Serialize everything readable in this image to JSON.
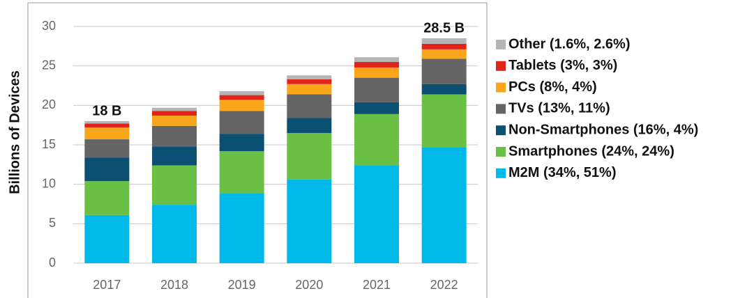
{
  "chart_data": {
    "type": "stacked_bar",
    "y_label": "Billions of Devices",
    "categories": [
      "2017",
      "2018",
      "2019",
      "2020",
      "2021",
      "2022"
    ],
    "series": [
      {
        "name": "M2M (34%,  51%)",
        "color": "#00b9e8",
        "values": [
          6.1,
          7.4,
          8.9,
          10.6,
          12.4,
          14.7
        ]
      },
      {
        "name": "Smartphones (24%,  24%)",
        "color": "#6abf45",
        "values": [
          4.3,
          5.0,
          5.3,
          5.9,
          6.5,
          6.7
        ]
      },
      {
        "name": "Non-Smartphones (16%,  4%)",
        "color": "#0b4f72",
        "values": [
          3.0,
          2.4,
          2.2,
          1.9,
          1.5,
          1.3
        ]
      },
      {
        "name": "TVs (13%,  11%)",
        "color": "#656565",
        "values": [
          2.3,
          2.6,
          2.9,
          3.0,
          3.1,
          3.2
        ]
      },
      {
        "name": "PCs (8%,  4%)",
        "color": "#f9a61a",
        "values": [
          1.5,
          1.3,
          1.4,
          1.3,
          1.3,
          1.2
        ]
      },
      {
        "name": "Tablets (3%,  3%)",
        "color": "#e2231a",
        "values": [
          0.5,
          0.6,
          0.6,
          0.6,
          0.7,
          0.7
        ]
      },
      {
        "name": "Other (1.6%,  2.6%)",
        "color": "#b5b5b5",
        "values": [
          0.3,
          0.4,
          0.5,
          0.5,
          0.6,
          0.7
        ]
      }
    ],
    "annotations": [
      {
        "text": "18 B",
        "category": "2017"
      },
      {
        "text": "28.5 B",
        "category": "2022"
      }
    ],
    "ylim": [
      0,
      30
    ],
    "yticks": [
      0,
      5,
      10,
      15,
      20,
      25,
      30
    ],
    "grid": true
  }
}
